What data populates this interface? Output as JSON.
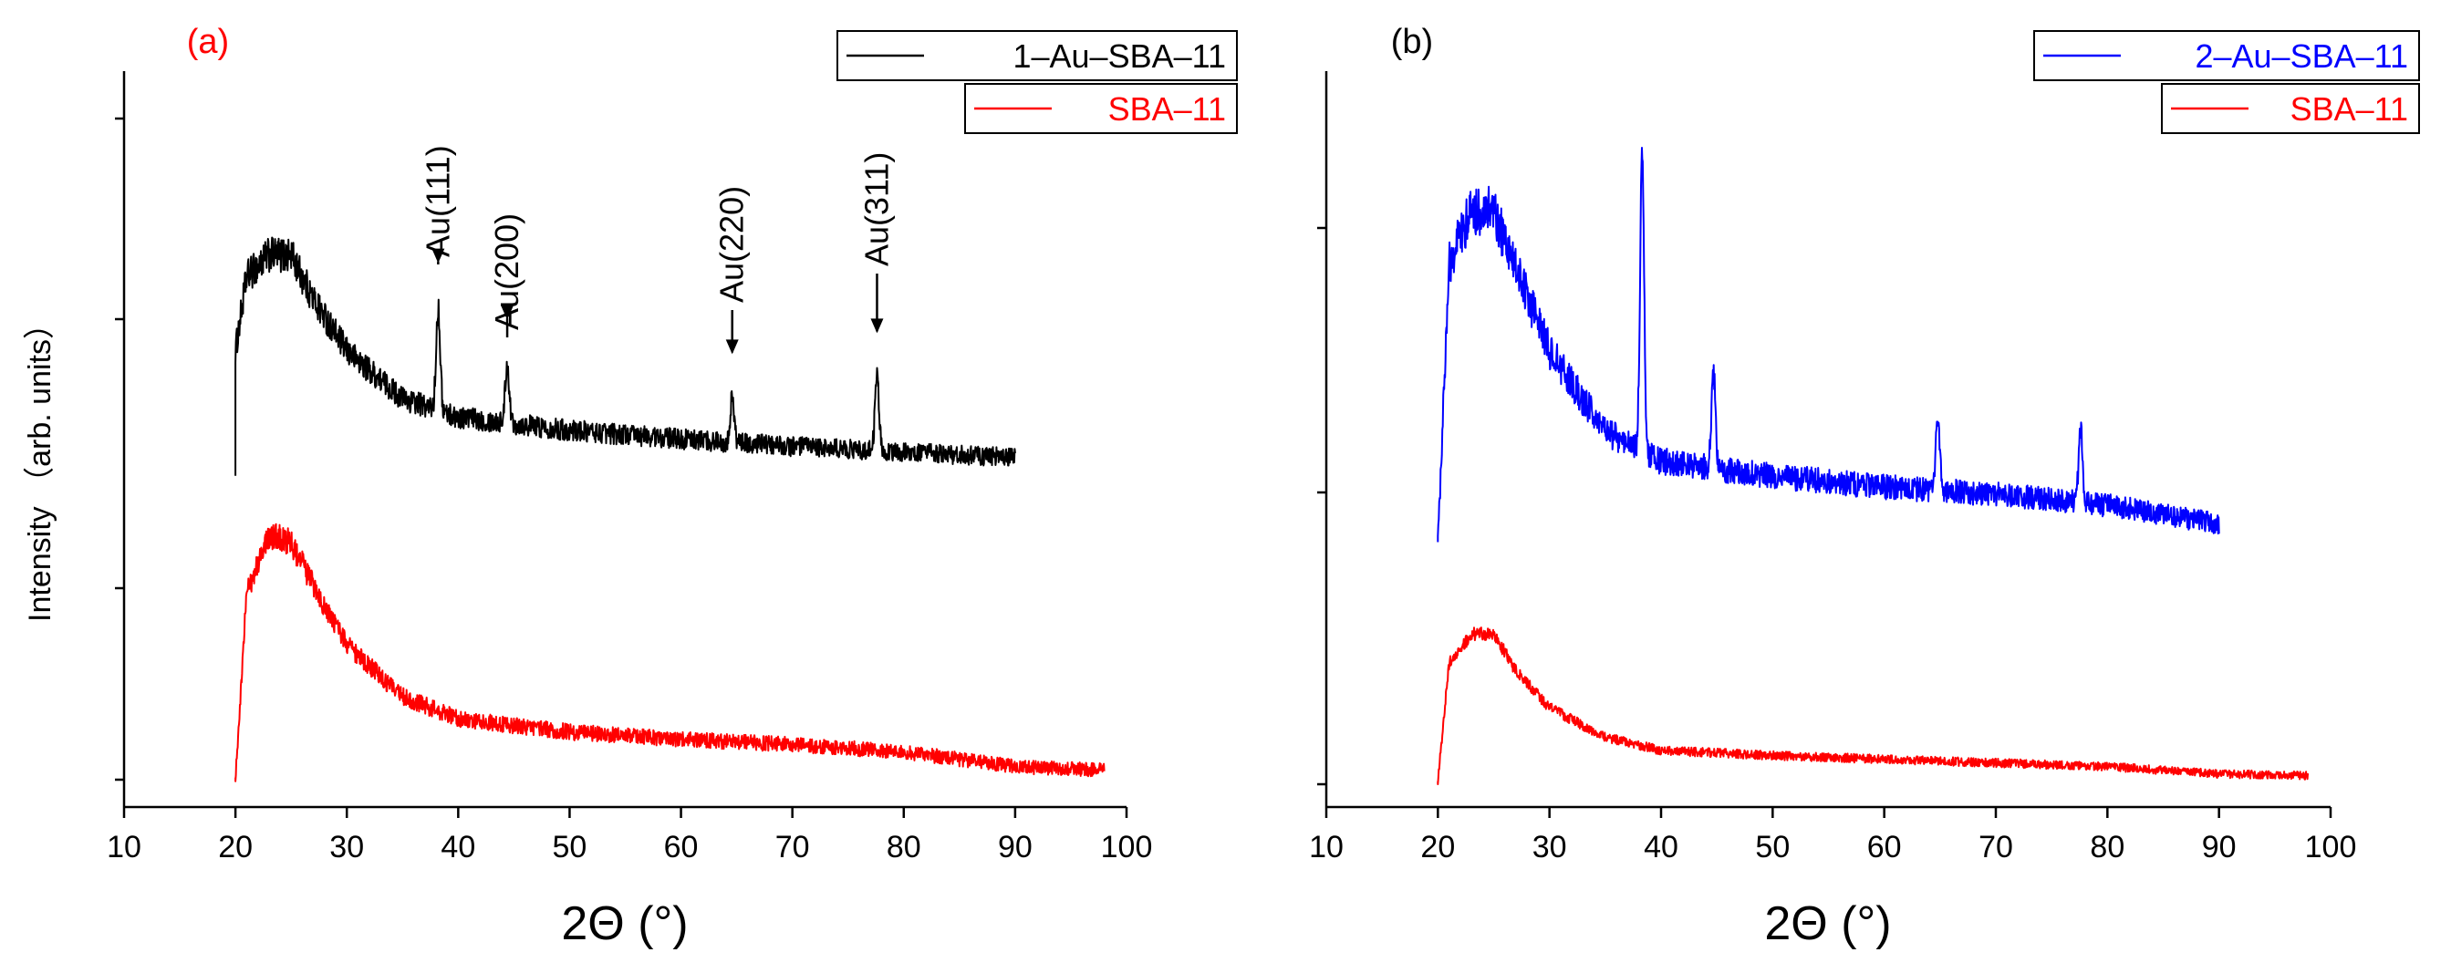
{
  "figure": {
    "y_title": "Intensity （arb. units）",
    "x_title": "2Θ (°)"
  },
  "colors": {
    "black": "#000000",
    "red": "#ff0000",
    "blue": "#0000ff"
  },
  "chart_data": [
    {
      "panel_label": "(a)",
      "panel_label_color": "#ff0000",
      "type": "line",
      "title": "",
      "xlabel": "2Θ (°)",
      "ylabel": "Intensity （arb. units）",
      "xlim": [
        10,
        100
      ],
      "x_ticks": [
        10,
        20,
        30,
        40,
        50,
        60,
        70,
        80,
        90,
        100
      ],
      "y_ticks_count": 5,
      "ylim": [
        0,
        1
      ],
      "grid": false,
      "legend_position": "top-right",
      "series": [
        {
          "name": "1–Au–SBA–11",
          "color": "#000000",
          "x_range": [
            20,
            90
          ],
          "offset": 0.45,
          "anchors": [
            [
              20,
              0.17
            ],
            [
              21,
              0.27
            ],
            [
              23,
              0.3
            ],
            [
              25,
              0.3
            ],
            [
              27,
              0.24
            ],
            [
              30,
              0.17
            ],
            [
              35,
              0.105
            ],
            [
              40,
              0.08
            ],
            [
              50,
              0.062
            ],
            [
              60,
              0.05
            ],
            [
              70,
              0.04
            ],
            [
              80,
              0.032
            ],
            [
              90,
              0.025
            ]
          ],
          "noise": 0.04,
          "peaks": [
            [
              38.2,
              0.14
            ],
            [
              44.4,
              0.08
            ],
            [
              64.6,
              0.06
            ],
            [
              77.6,
              0.1
            ]
          ]
        },
        {
          "name": "SBA–11",
          "color": "#ff0000",
          "x_range": [
            20,
            98
          ],
          "offset": 0.04,
          "anchors": [
            [
              20,
              0.0
            ],
            [
              21,
              0.25
            ],
            [
              23,
              0.33
            ],
            [
              25,
              0.32
            ],
            [
              27,
              0.26
            ],
            [
              30,
              0.18
            ],
            [
              35,
              0.11
            ],
            [
              40,
              0.08
            ],
            [
              50,
              0.062
            ],
            [
              60,
              0.052
            ],
            [
              70,
              0.045
            ],
            [
              80,
              0.035
            ],
            [
              90,
              0.015
            ],
            [
              98,
              0.01
            ]
          ],
          "noise": 0.03,
          "peaks": []
        }
      ],
      "annotations": [
        {
          "label": "Au(111)",
          "x": 38.2
        },
        {
          "label": "Au(200)",
          "x": 44.4
        },
        {
          "label": "Au(220)",
          "x": 64.6
        },
        {
          "label": "Au(311)",
          "x": 77.6
        }
      ]
    },
    {
      "panel_label": "(b)",
      "panel_label_color": "#000000",
      "type": "line",
      "title": "",
      "xlabel": "2Θ (°)",
      "ylabel": "",
      "xlim": [
        10,
        100
      ],
      "x_ticks": [
        10,
        20,
        30,
        40,
        50,
        60,
        70,
        80,
        90,
        100
      ],
      "y_ticks_count": 4,
      "ylim": [
        0,
        1
      ],
      "grid": false,
      "legend_position": "top-right",
      "series": [
        {
          "name": "2–Au–SBA–11",
          "color": "#0000ff",
          "x_range": [
            20,
            90
          ],
          "offset": 0.36,
          "anchors": [
            [
              20,
              0.0
            ],
            [
              21,
              0.38
            ],
            [
              23,
              0.45
            ],
            [
              25,
              0.45
            ],
            [
              27,
              0.37
            ],
            [
              30,
              0.26
            ],
            [
              35,
              0.15
            ],
            [
              40,
              0.11
            ],
            [
              50,
              0.09
            ],
            [
              60,
              0.075
            ],
            [
              70,
              0.065
            ],
            [
              80,
              0.05
            ],
            [
              90,
              0.025
            ]
          ],
          "noise": 0.045,
          "peaks": [
            [
              38.3,
              0.4
            ],
            [
              44.7,
              0.13
            ],
            [
              64.8,
              0.1
            ],
            [
              77.6,
              0.1
            ]
          ]
        },
        {
          "name": "SBA–11",
          "color": "#ff0000",
          "x_range": [
            20,
            98
          ],
          "offset": 0.035,
          "anchors": [
            [
              20,
              0.0
            ],
            [
              21,
              0.16
            ],
            [
              23,
              0.2
            ],
            [
              25,
              0.2
            ],
            [
              27,
              0.15
            ],
            [
              30,
              0.1
            ],
            [
              35,
              0.06
            ],
            [
              40,
              0.042
            ],
            [
              50,
              0.035
            ],
            [
              60,
              0.03
            ],
            [
              70,
              0.025
            ],
            [
              80,
              0.02
            ],
            [
              90,
              0.01
            ],
            [
              98,
              0.008
            ]
          ],
          "noise": 0.018,
          "peaks": []
        }
      ],
      "annotations": []
    }
  ]
}
